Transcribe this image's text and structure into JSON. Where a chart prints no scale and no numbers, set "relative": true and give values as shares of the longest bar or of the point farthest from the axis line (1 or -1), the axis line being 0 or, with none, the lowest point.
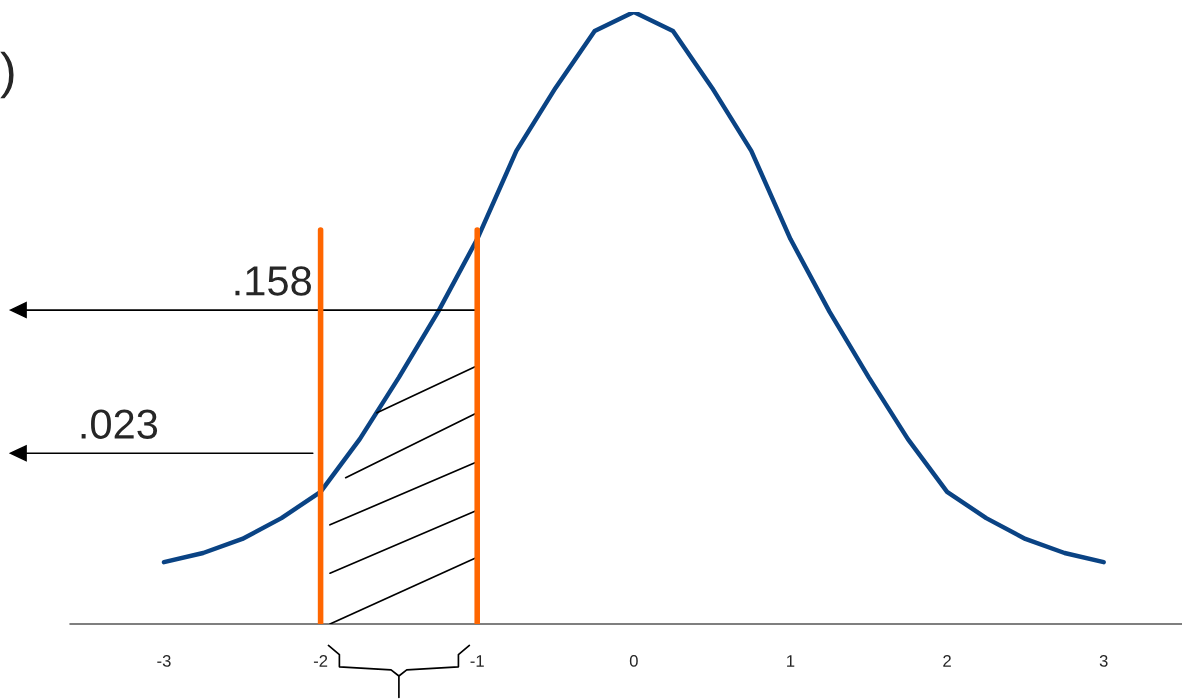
{
  "chart_data": {
    "type": "line",
    "relative": true,
    "x": [
      -3,
      -2.75,
      -2.5,
      -2.25,
      -2,
      -1.75,
      -1.5,
      -1.25,
      -1,
      -0.75,
      -0.5,
      -0.25,
      0,
      0.25,
      0.5,
      0.75,
      1,
      1.25,
      1.5,
      1.75,
      2,
      2.25,
      2.5,
      2.75,
      3
    ],
    "series": [
      {
        "color": "#0a4384",
        "values": [
          0.101,
          0.116,
          0.139,
          0.173,
          0.216,
          0.302,
          0.403,
          0.51,
          0.629,
          0.773,
          0.876,
          0.969,
          1,
          0.969,
          0.876,
          0.773,
          0.629,
          0.51,
          0.403,
          0.302,
          0.216,
          0.173,
          0.139,
          0.116,
          0.101
        ]
      }
    ],
    "xlim": [
      -3.6,
      3.5
    ],
    "xticks": [
      -3,
      -2,
      -1,
      0,
      1,
      2,
      3
    ],
    "ref_lines": [
      {
        "axis": "x",
        "value": -2,
        "color": "#ff6600"
      },
      {
        "axis": "x",
        "value": -1,
        "color": "#ff6600"
      },
      {
        "axis": "y",
        "value": 0.513,
        "color": "#000000"
      },
      {
        "axis": "y",
        "value": 0.279,
        "color": "#000000"
      }
    ],
    "annotations": [
      ".158",
      ".023",
      ")"
    ],
    "grid": false,
    "legend": false,
    "marker": "none",
    "line_style": "solid"
  }
}
